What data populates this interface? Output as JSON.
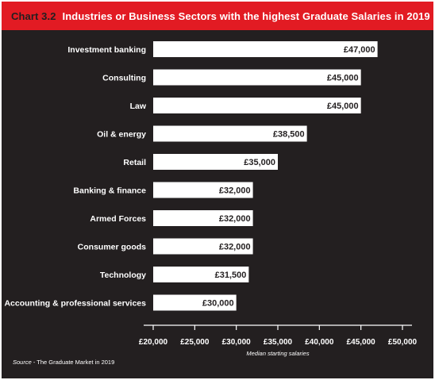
{
  "header": {
    "chart_number": "Chart 3.2",
    "title": "Industries or Business Sectors with the highest Graduate Salaries in 2019"
  },
  "colors": {
    "background": "#231f20",
    "header": "#e21b23",
    "bar": "#ffffff",
    "text": "#ffffff"
  },
  "chart_data": {
    "type": "bar",
    "orientation": "horizontal",
    "title": "Industries or Business Sectors with the highest Graduate Salaries in 2019",
    "categories": [
      "Investment banking",
      "Consulting",
      "Law",
      "Oil & energy",
      "Retail",
      "Banking & finance",
      "Armed Forces",
      "Consumer goods",
      "Technology",
      "Accounting & professional services"
    ],
    "values": [
      47000,
      45000,
      45000,
      38500,
      35000,
      32000,
      32000,
      32000,
      31500,
      30000
    ],
    "value_labels": [
      "£47,000",
      "£45,000",
      "£45,000",
      "£38,500",
      "£35,000",
      "£32,000",
      "£32,000",
      "£32,000",
      "£31,500",
      "£30,000"
    ],
    "xlabel": "Median starting salaries",
    "xlim": [
      20000,
      50000
    ],
    "x_ticks": [
      20000,
      25000,
      30000,
      35000,
      40000,
      45000,
      50000
    ],
    "x_tick_labels": [
      "£20,000",
      "£25,000",
      "£30,000",
      "£35,000",
      "£40,000",
      "£45,000",
      "£50,000"
    ],
    "grid": false
  },
  "source": {
    "key": "Source",
    "text": " - The Graduate Market in 2019"
  }
}
